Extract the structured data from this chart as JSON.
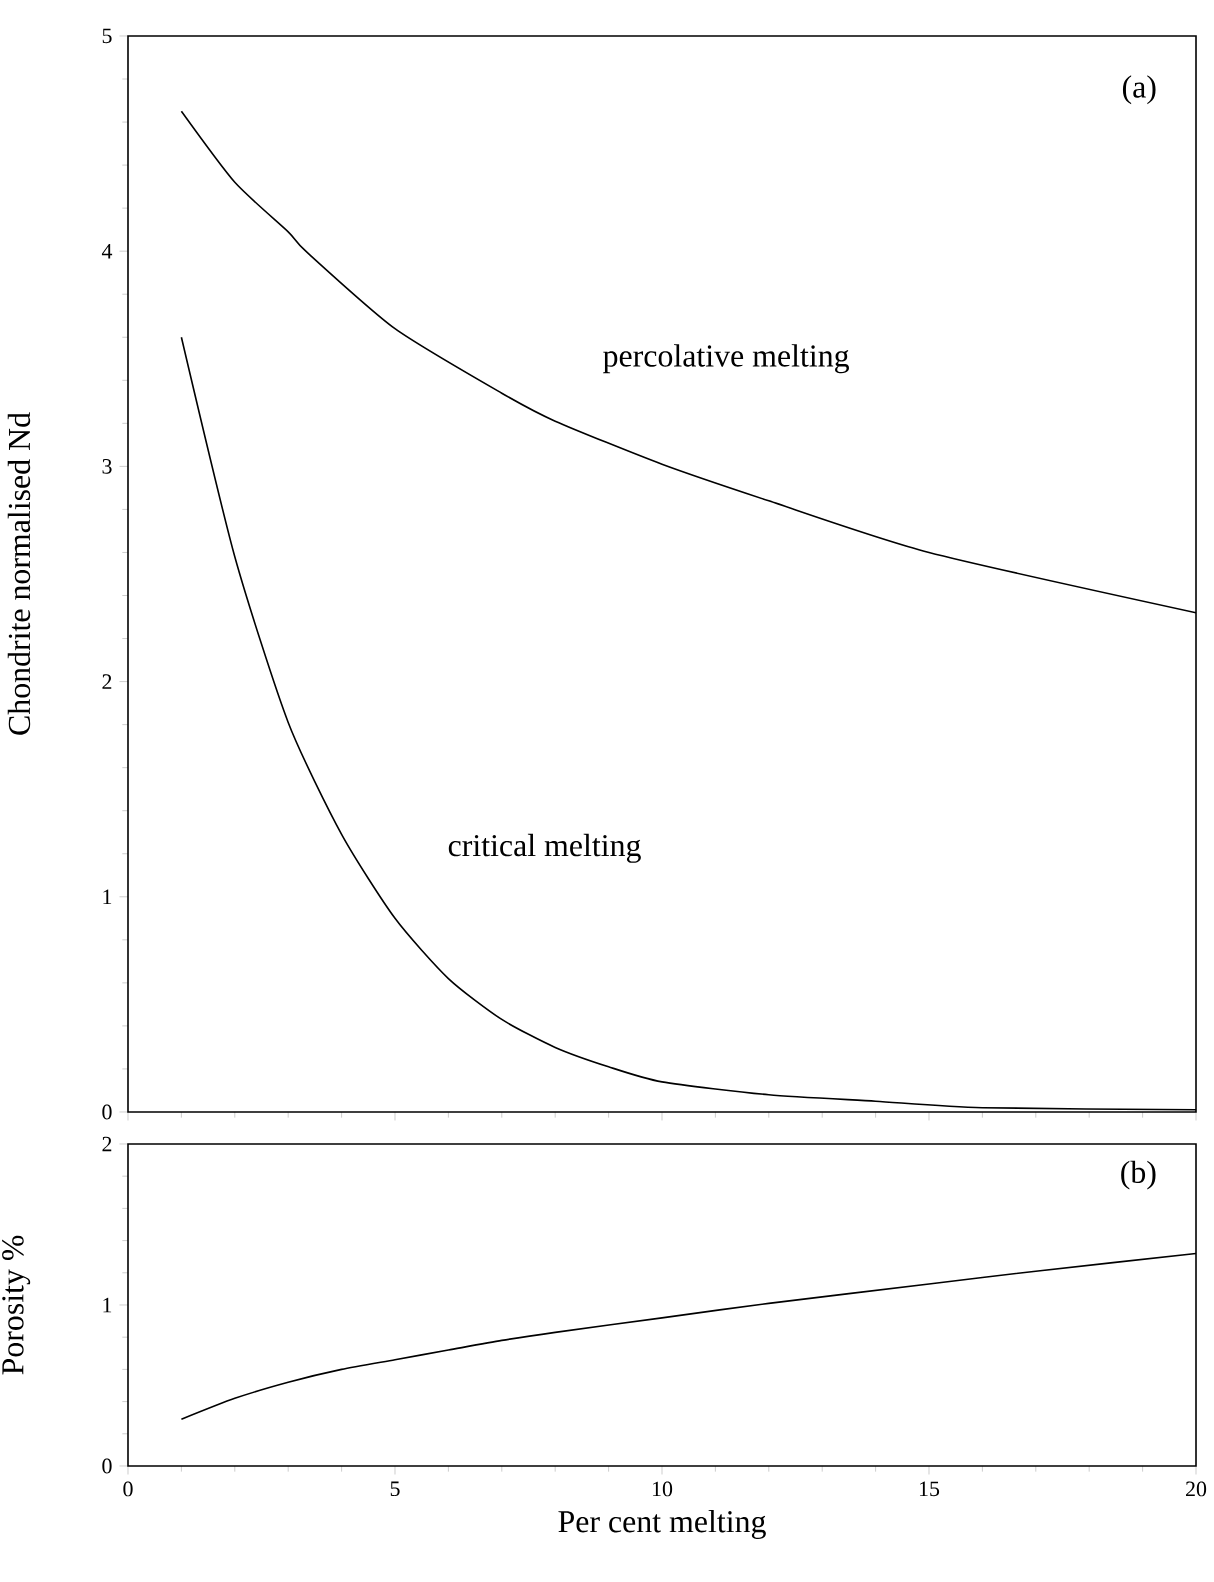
{
  "chart_data": [
    {
      "type": "line",
      "ylabel": "Chondrite normalised Nd",
      "xlim": [
        0,
        20
      ],
      "ylim": [
        0,
        5
      ],
      "xticks": [
        0,
        5,
        10,
        15,
        20
      ],
      "yticks": [
        0,
        1,
        2,
        3,
        4,
        5
      ],
      "tick_labels": "y",
      "grid": false,
      "annotations": [
        "(a)"
      ],
      "series": [
        {
          "name": "percolative melting",
          "color": "#000000",
          "x": [
            1,
            2,
            3,
            3.33,
            5,
            7,
            8,
            10,
            12,
            15,
            20
          ],
          "values": [
            4.65,
            4.32,
            4.09,
            4.0,
            3.64,
            3.34,
            3.21,
            3.01,
            2.84,
            2.6,
            2.32
          ]
        },
        {
          "name": "critical melting",
          "color": "#000000",
          "x": [
            1,
            2,
            3,
            4,
            5,
            6,
            7,
            8,
            9,
            10,
            12,
            14,
            16,
            20
          ],
          "values": [
            3.6,
            2.58,
            1.81,
            1.29,
            0.9,
            0.62,
            0.43,
            0.3,
            0.21,
            0.14,
            0.08,
            0.05,
            0.02,
            0.01
          ]
        }
      ]
    },
    {
      "type": "line",
      "xlabel": "Per cent melting",
      "ylabel": "Porosity %",
      "xlim": [
        0,
        20
      ],
      "ylim": [
        0,
        2
      ],
      "xticks": [
        0,
        5,
        10,
        15,
        20
      ],
      "yticks": [
        0,
        1,
        2
      ],
      "grid": false,
      "annotations": [
        "(b)"
      ],
      "series": [
        {
          "color": "#000000",
          "x": [
            1,
            2,
            3,
            4,
            5,
            6,
            7,
            8,
            10,
            12,
            15,
            17,
            20
          ],
          "values": [
            0.29,
            0.42,
            0.52,
            0.6,
            0.66,
            0.72,
            0.78,
            0.83,
            0.92,
            1.01,
            1.13,
            1.21,
            1.32
          ]
        }
      ]
    }
  ]
}
